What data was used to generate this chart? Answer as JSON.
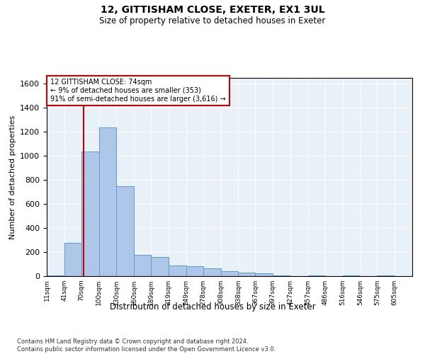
{
  "title1": "12, GITTISHAM CLOSE, EXETER, EX1 3UL",
  "title2": "Size of property relative to detached houses in Exeter",
  "xlabel": "Distribution of detached houses by size in Exeter",
  "ylabel": "Number of detached properties",
  "annotation_title": "12 GITTISHAM CLOSE: 74sqm",
  "annotation_line1": "← 9% of detached houses are smaller (353)",
  "annotation_line2": "91% of semi-detached houses are larger (3,616) →",
  "property_size": 74,
  "bar_color": "#aec6e8",
  "bar_edge_color": "#5b9bd5",
  "vline_color": "#cc0000",
  "annotation_box_color": "#cc0000",
  "background_color": "#e8f0f8",
  "grid_color": "#ffffff",
  "footer": "Contains HM Land Registry data © Crown copyright and database right 2024.\nContains public sector information licensed under the Open Government Licence v3.0.",
  "bin_labels": [
    "11sqm",
    "41sqm",
    "70sqm",
    "100sqm",
    "130sqm",
    "160sqm",
    "189sqm",
    "219sqm",
    "249sqm",
    "278sqm",
    "308sqm",
    "338sqm",
    "367sqm",
    "397sqm",
    "427sqm",
    "457sqm",
    "486sqm",
    "516sqm",
    "546sqm",
    "575sqm",
    "605sqm"
  ],
  "bin_edges": [
    11,
    41,
    70,
    100,
    130,
    160,
    189,
    219,
    249,
    278,
    308,
    338,
    367,
    397,
    427,
    457,
    486,
    516,
    546,
    575,
    605
  ],
  "bar_heights": [
    5,
    275,
    1040,
    1240,
    750,
    175,
    160,
    90,
    85,
    65,
    40,
    30,
    25,
    5,
    0,
    5,
    0,
    5,
    0,
    5,
    0
  ],
  "ylim": [
    0,
    1650
  ],
  "yticks": [
    0,
    200,
    400,
    600,
    800,
    1000,
    1200,
    1400,
    1600
  ]
}
